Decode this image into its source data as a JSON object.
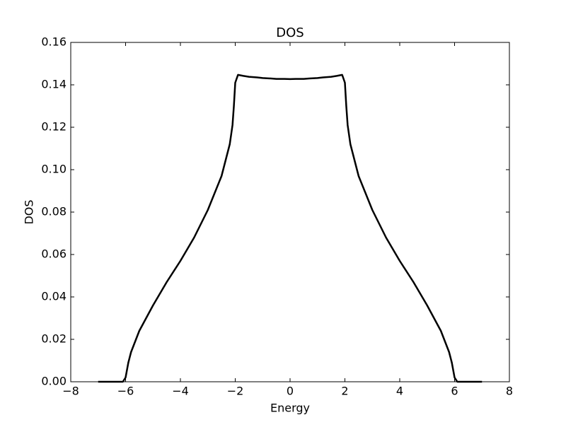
{
  "chart_data": {
    "type": "line",
    "title": "DOS",
    "x_label": "Energy",
    "y_label": "DOS",
    "x": [
      -7,
      -6.5,
      -6.1,
      -6.0,
      -5.9,
      -5.8,
      -5.5,
      -5,
      -4.5,
      -4,
      -3.5,
      -3,
      -2.5,
      -2.2,
      -2.1,
      -2.05,
      -2.0,
      -1.9,
      -1.7,
      -1.5,
      -1.2,
      -1,
      -0.7,
      -0.5,
      -0.2,
      0,
      0.2,
      0.5,
      0.7,
      1,
      1.2,
      1.5,
      1.7,
      1.9,
      2.0,
      2.05,
      2.1,
      2.2,
      2.5,
      3,
      3.5,
      4,
      4.5,
      5,
      5.5,
      5.8,
      5.9,
      6.0,
      6.1,
      6.5,
      7
    ],
    "series": [
      {
        "name": "DOS",
        "color": "#000000",
        "values": [
          0,
          0,
          0,
          0.002,
          0.009,
          0.014,
          0.024,
          0.036,
          0.047,
          0.057,
          0.068,
          0.081,
          0.097,
          0.112,
          0.121,
          0.13,
          0.141,
          0.1447,
          0.1442,
          0.1438,
          0.1435,
          0.1432,
          0.143,
          0.1428,
          0.1428,
          0.1427,
          0.1428,
          0.1428,
          0.143,
          0.1432,
          0.1435,
          0.1438,
          0.1442,
          0.1447,
          0.141,
          0.13,
          0.121,
          0.112,
          0.097,
          0.081,
          0.068,
          0.057,
          0.047,
          0.036,
          0.024,
          0.014,
          0.009,
          0.002,
          0,
          0,
          0
        ]
      }
    ],
    "xlim": [
      -8,
      8
    ],
    "ylim": [
      0,
      0.16
    ],
    "xticks": [
      {
        "value": -8,
        "label": "−8"
      },
      {
        "value": -6,
        "label": "−6"
      },
      {
        "value": -4,
        "label": "−4"
      },
      {
        "value": -2,
        "label": "−2"
      },
      0,
      2,
      4,
      6,
      8
    ],
    "yticks": [
      {
        "value": 0,
        "label": "0.00"
      },
      0.02,
      0.04,
      0.06,
      0.08,
      {
        "value": 0.1,
        "label": "0.10"
      },
      0.12,
      0.14,
      0.16
    ],
    "grid": false
  }
}
